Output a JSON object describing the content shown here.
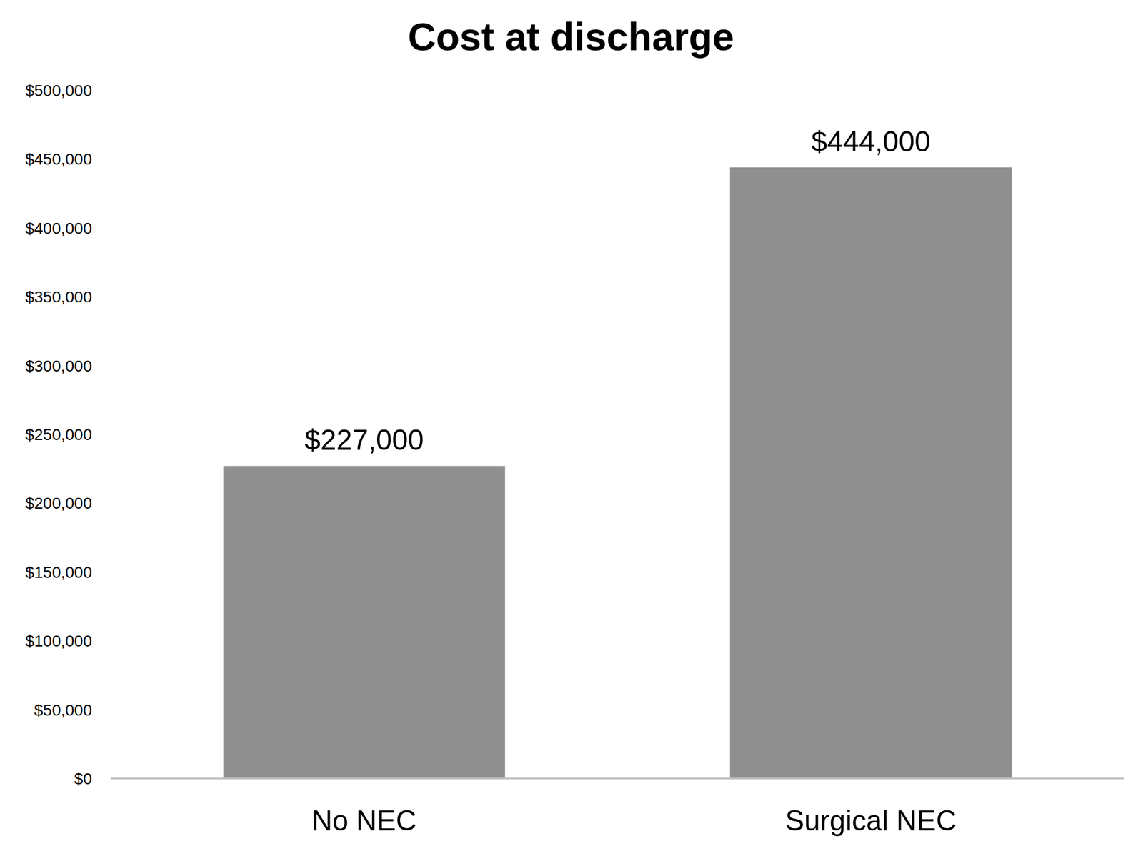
{
  "chart_data": {
    "type": "bar",
    "title": "Cost at discharge",
    "categories": [
      "No NEC",
      "Surgical NEC"
    ],
    "values": [
      227000,
      444000
    ],
    "value_labels": [
      "$227,000",
      "$444,000"
    ],
    "color": "#8f8f8f",
    "ylim": [
      0,
      500000
    ],
    "yticks": [
      {
        "value": 0,
        "label": "$0"
      },
      {
        "value": 50000,
        "label": "$50,000"
      },
      {
        "value": 100000,
        "label": "$100,000"
      },
      {
        "value": 150000,
        "label": "$150,000"
      },
      {
        "value": 200000,
        "label": "$200,000"
      },
      {
        "value": 250000,
        "label": "$250,000"
      },
      {
        "value": 300000,
        "label": "$300,000"
      },
      {
        "value": 350000,
        "label": "$350,000"
      },
      {
        "value": 400000,
        "label": "$400,000"
      },
      {
        "value": 450000,
        "label": "$450,000"
      },
      {
        "value": 500000,
        "label": "$500,000"
      }
    ],
    "grid": false,
    "data_labels": true
  }
}
